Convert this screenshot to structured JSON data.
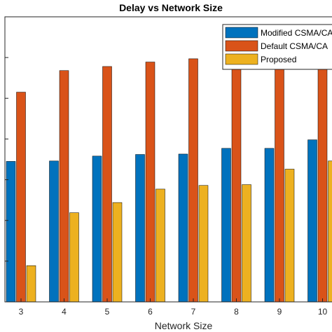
{
  "colors": {
    "modified": "#0072BD",
    "default": "#D95319",
    "proposed": "#EDB120",
    "axis": "#262626",
    "background": "#ffffff"
  },
  "chart_data": {
    "type": "bar",
    "title": "Delay vs Network Size",
    "xlabel": "Network Size",
    "ylabel": "",
    "categories": [
      "3",
      "4",
      "5",
      "6",
      "7",
      "8",
      "9",
      "10"
    ],
    "ylim": [
      0,
      7
    ],
    "grid": false,
    "legend_position": "top-right",
    "series": [
      {
        "name": "Modified CSMA/CA",
        "color_key": "modified",
        "values": [
          3.45,
          3.46,
          3.58,
          3.62,
          3.63,
          3.77,
          3.77,
          3.98
        ]
      },
      {
        "name": "Default CSMA/CA",
        "color_key": "default",
        "values": [
          5.15,
          5.68,
          5.78,
          5.89,
          5.97,
          5.88,
          5.88,
          6.05
        ]
      },
      {
        "name": "Proposed",
        "color_key": "proposed",
        "values": [
          0.89,
          2.19,
          2.44,
          2.77,
          2.86,
          2.88,
          3.26,
          3.46
        ]
      }
    ]
  }
}
